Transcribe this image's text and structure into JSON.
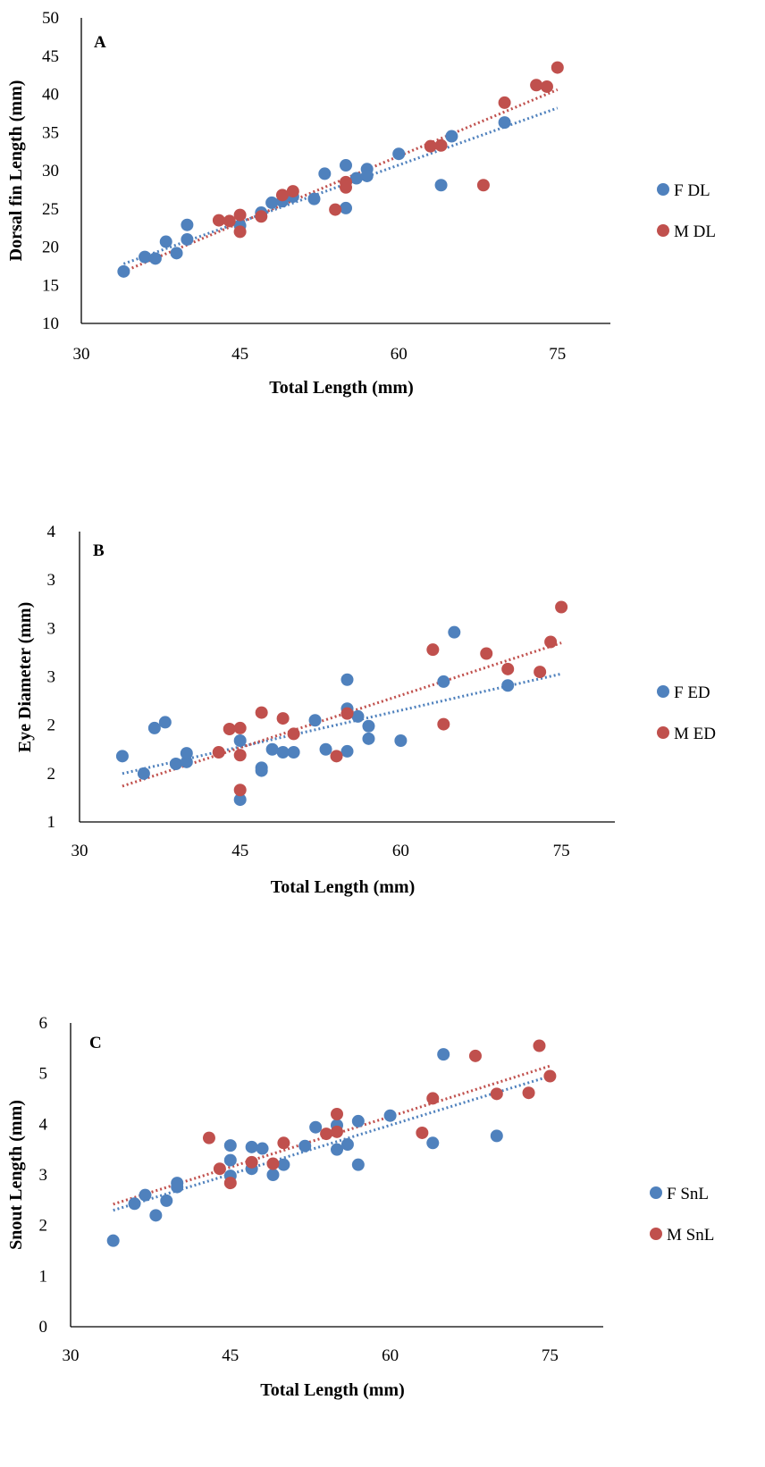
{
  "chart_data": [
    {
      "type": "scatter",
      "panel_label": "A",
      "xlabel": "Total Length (mm)",
      "ylabel": "Dorsal fin Length  (mm)",
      "xlim": [
        30,
        80
      ],
      "ylim": [
        10,
        50
      ],
      "xticks": [
        30,
        45,
        60,
        75
      ],
      "yticks": [
        10,
        15,
        20,
        25,
        30,
        35,
        40,
        45,
        50
      ],
      "legend_position": "right",
      "series": [
        {
          "name": "F DL",
          "color": "#4F81BD",
          "points": [
            [
              34,
              16.8
            ],
            [
              36,
              18.7
            ],
            [
              37,
              18.5
            ],
            [
              38,
              20.7
            ],
            [
              39,
              19.2
            ],
            [
              40,
              21
            ],
            [
              40,
              22.9
            ],
            [
              45,
              22.8
            ],
            [
              47,
              24.5
            ],
            [
              48,
              25.8
            ],
            [
              49,
              26
            ],
            [
              50,
              26.6
            ],
            [
              52,
              26.3
            ],
            [
              53,
              29.6
            ],
            [
              55,
              30.7
            ],
            [
              55,
              25.1
            ],
            [
              56,
              29
            ],
            [
              57,
              30.2
            ],
            [
              57,
              29.3
            ],
            [
              60,
              32.2
            ],
            [
              64,
              28.1
            ],
            [
              65,
              34.5
            ],
            [
              70,
              36.3
            ]
          ],
          "trendline": {
            "x": [
              34,
              75
            ],
            "y": [
              17.8,
              38.2
            ],
            "style": "dotted"
          }
        },
        {
          "name": "M DL",
          "color": "#C0504D",
          "points": [
            [
              43,
              23.5
            ],
            [
              44,
              23.4
            ],
            [
              45,
              24.2
            ],
            [
              45,
              22
            ],
            [
              47,
              24
            ],
            [
              49,
              26.8
            ],
            [
              50,
              27.3
            ],
            [
              54,
              24.9
            ],
            [
              55,
              28.5
            ],
            [
              55,
              27.8
            ],
            [
              63,
              33.2
            ],
            [
              64,
              33.3
            ],
            [
              68,
              28.1
            ],
            [
              70,
              38.9
            ],
            [
              73,
              41.2
            ],
            [
              74,
              41
            ],
            [
              75,
              43.5
            ]
          ],
          "trendline": {
            "x": [
              34,
              75
            ],
            "y": [
              16.8,
              40.6
            ],
            "style": "dotted"
          }
        }
      ]
    },
    {
      "type": "scatter",
      "panel_label": "B",
      "xlabel": "Total Length  (mm)",
      "ylabel": "Eye Diameter (mm)",
      "xlim": [
        30,
        80
      ],
      "ylim": [
        1,
        4
      ],
      "xticks": [
        30,
        45,
        60,
        75
      ],
      "ytick_values": [
        1,
        1.5,
        2,
        2.5,
        3,
        3.5,
        4
      ],
      "ytick_labels": [
        "1",
        "2",
        "2",
        "3",
        "3",
        "3",
        "4"
      ],
      "legend_position": "right",
      "series": [
        {
          "name": "F ED",
          "color": "#4F81BD",
          "points": [
            [
              34,
              1.68
            ],
            [
              36,
              1.5
            ],
            [
              37,
              1.97
            ],
            [
              38,
              2.03
            ],
            [
              39,
              1.6
            ],
            [
              40,
              1.62
            ],
            [
              40,
              1.71
            ],
            [
              45,
              1.84
            ],
            [
              45,
              1.23
            ],
            [
              47,
              1.56
            ],
            [
              47,
              1.53
            ],
            [
              48,
              1.75
            ],
            [
              49,
              1.72
            ],
            [
              50,
              1.72
            ],
            [
              52,
              2.05
            ],
            [
              53,
              1.75
            ],
            [
              55,
              2.47
            ],
            [
              55,
              2.17
            ],
            [
              55,
              1.73
            ],
            [
              56,
              2.09
            ],
            [
              57,
              1.99
            ],
            [
              57,
              1.86
            ],
            [
              60,
              1.84
            ],
            [
              64,
              2.45
            ],
            [
              65,
              2.96
            ],
            [
              70,
              2.41
            ]
          ],
          "trendline": {
            "x": [
              34,
              75
            ],
            "y": [
              1.5,
              2.53
            ],
            "style": "dotted"
          }
        },
        {
          "name": "M ED",
          "color": "#C0504D",
          "points": [
            [
              43,
              1.72
            ],
            [
              44,
              1.96
            ],
            [
              45,
              1.97
            ],
            [
              45,
              1.69
            ],
            [
              45,
              1.33
            ],
            [
              47,
              2.13
            ],
            [
              49,
              2.07
            ],
            [
              50,
              1.91
            ],
            [
              54,
              1.68
            ],
            [
              55,
              2.12
            ],
            [
              63,
              2.78
            ],
            [
              64,
              2.01
            ],
            [
              68,
              2.74
            ],
            [
              70,
              2.58
            ],
            [
              73,
              2.55
            ],
            [
              74,
              2.86
            ],
            [
              75,
              3.22
            ]
          ],
          "trendline": {
            "x": [
              34,
              75
            ],
            "y": [
              1.37,
              2.85
            ],
            "style": "dotted"
          }
        }
      ]
    },
    {
      "type": "scatter",
      "panel_label": "C",
      "xlabel": "Total Length (mm)",
      "ylabel": "Snout Length (mm)",
      "xlim": [
        30,
        80
      ],
      "ylim": [
        0,
        6
      ],
      "xticks": [
        30,
        45,
        60,
        75
      ],
      "yticks": [
        0,
        1,
        2,
        3,
        4,
        5,
        6
      ],
      "legend_position": "right",
      "series": [
        {
          "name": "F SnL",
          "color": "#4F81BD",
          "points": [
            [
              34,
              1.7
            ],
            [
              36,
              2.43
            ],
            [
              37,
              2.6
            ],
            [
              38,
              2.2
            ],
            [
              39,
              2.49
            ],
            [
              40,
              2.84
            ],
            [
              40,
              2.76
            ],
            [
              45,
              3.58
            ],
            [
              45,
              3.29
            ],
            [
              45,
              2.98
            ],
            [
              47,
              3.55
            ],
            [
              47,
              3.12
            ],
            [
              48,
              3.52
            ],
            [
              49,
              3
            ],
            [
              50,
              3.2
            ],
            [
              52,
              3.57
            ],
            [
              53,
              3.94
            ],
            [
              55,
              3.98
            ],
            [
              55,
              3.5
            ],
            [
              56,
              3.6
            ],
            [
              57,
              4.06
            ],
            [
              57,
              3.2
            ],
            [
              60,
              4.17
            ],
            [
              64,
              3.63
            ],
            [
              65,
              5.38
            ],
            [
              70,
              3.77
            ]
          ],
          "trendline": {
            "x": [
              34,
              75
            ],
            "y": [
              2.3,
              4.95
            ],
            "style": "dotted"
          }
        },
        {
          "name": "M SnL",
          "color": "#C0504D",
          "points": [
            [
              43,
              3.73
            ],
            [
              44,
              3.12
            ],
            [
              45,
              2.84
            ],
            [
              47,
              3.25
            ],
            [
              49,
              3.22
            ],
            [
              50,
              3.63
            ],
            [
              54,
              3.81
            ],
            [
              55,
              3.85
            ],
            [
              55,
              4.2
            ],
            [
              63,
              3.83
            ],
            [
              64,
              4.51
            ],
            [
              68,
              5.35
            ],
            [
              70,
              4.6
            ],
            [
              73,
              4.62
            ],
            [
              74,
              5.55
            ],
            [
              75,
              4.95
            ]
          ],
          "trendline": {
            "x": [
              34,
              75
            ],
            "y": [
              2.42,
              5.15
            ],
            "style": "dotted"
          }
        }
      ]
    }
  ]
}
